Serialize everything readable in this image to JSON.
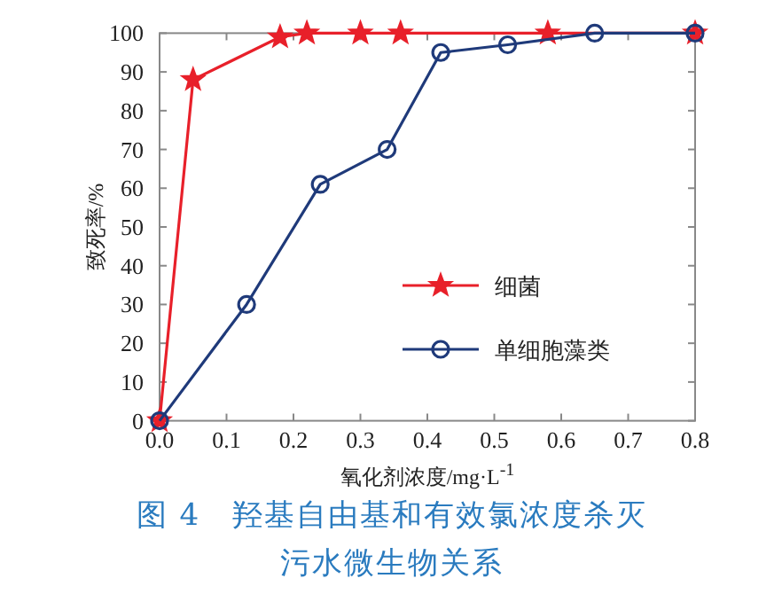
{
  "chart_data": {
    "type": "line",
    "title": "图 4　羟基自由基和有效氯浓度杀灭污水微生物关系",
    "xlabel": "氧化剂浓度/mg·L$^{-1}$",
    "ylabel": "致死率/%",
    "xlim": [
      0,
      0.8
    ],
    "xticks": [
      {
        "value": 0,
        "label": "0.0"
      },
      0.1,
      0.2,
      0.3,
      0.4,
      0.5,
      0.6,
      0.7,
      0.8
    ],
    "ylim": [
      0,
      100
    ],
    "yticks": [
      0,
      10,
      20,
      30,
      40,
      50,
      60,
      70,
      80,
      90,
      100
    ],
    "legend": "right",
    "grid": false,
    "line_style": "solid",
    "series": [
      {
        "name": "细菌",
        "color": "#e8202a",
        "marker": "star",
        "x": [
          0,
          0.05,
          0.18,
          0.22,
          0.3,
          0.36,
          0.58,
          0.8
        ],
        "values": [
          0,
          88,
          99,
          100,
          100,
          100,
          100,
          100
        ]
      },
      {
        "name": "单细胞藻类",
        "color": "#1f3a7a",
        "marker": "circle",
        "x": [
          0,
          0.13,
          0.24,
          0.34,
          0.42,
          0.52,
          0.65,
          0.8
        ],
        "values": [
          0,
          30,
          61,
          70,
          95,
          97,
          100,
          100
        ]
      }
    ]
  }
}
